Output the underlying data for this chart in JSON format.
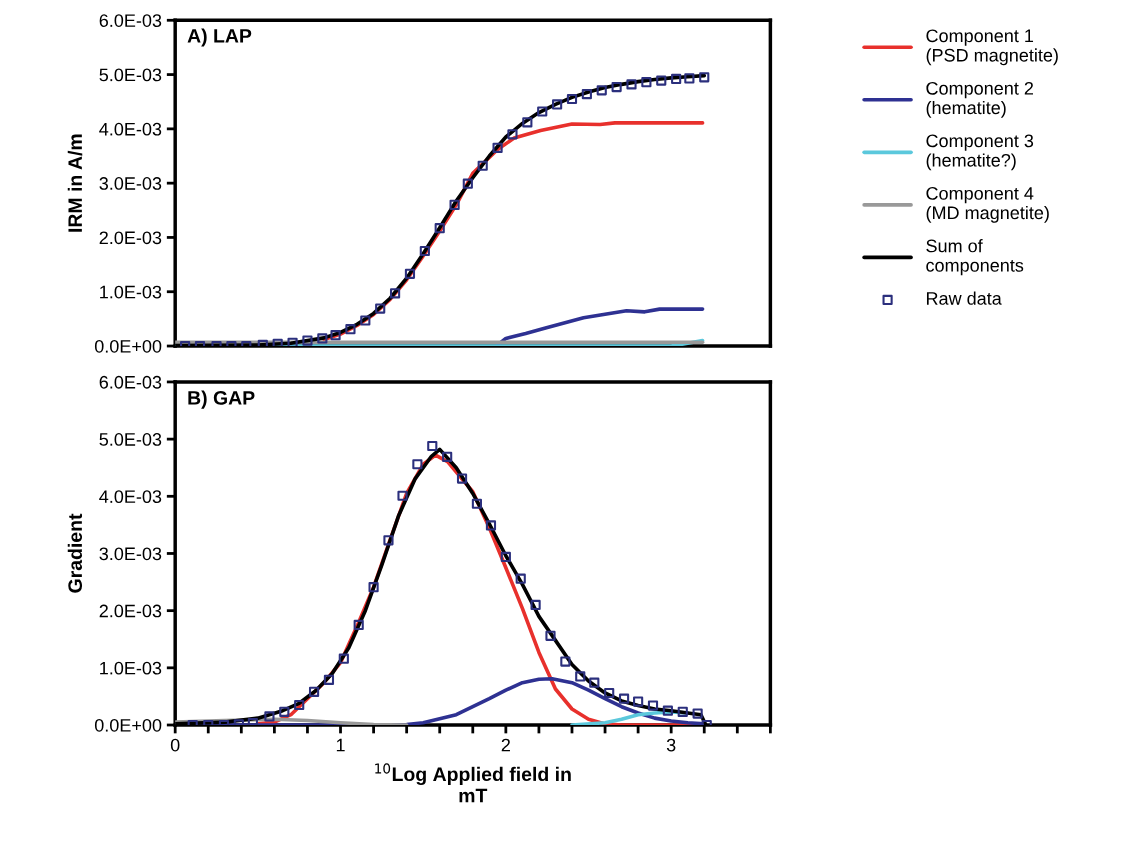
{
  "chart_data": [
    {
      "type": "line",
      "title": "A) LAP",
      "ylabel": "IRM in A/m",
      "xlim": [
        0,
        3.6
      ],
      "ylim": [
        0,
        0.006
      ],
      "yticks": [
        {
          "value": 0,
          "label": "0.0E+00"
        },
        {
          "value": 0.001,
          "label": "1.0E-03"
        },
        {
          "value": 0.002,
          "label": "2.0E-03"
        },
        {
          "value": 0.003,
          "label": "3.0E-03"
        },
        {
          "value": 0.004,
          "label": "4.0E-03"
        },
        {
          "value": 0.005,
          "label": "5.0E-03"
        },
        {
          "value": 0.006,
          "label": "6.0E-03"
        }
      ],
      "tick_labels": "y",
      "legend": "right",
      "series": [
        {
          "name": "Component 1\n(PSD magnetite)",
          "color": "#e8302c",
          "x": [
            0.9,
            1.0,
            1.1,
            1.2,
            1.3,
            1.4,
            1.5,
            1.6,
            1.7,
            1.8,
            1.95,
            2.05,
            2.21,
            2.4,
            2.57,
            2.66,
            3.19
          ],
          "values": [
            0.00012,
            0.00022,
            0.00038,
            0.00058,
            0.00086,
            0.00122,
            0.00166,
            0.00212,
            0.0026,
            0.00318,
            0.00362,
            0.00383,
            0.00397,
            0.00409,
            0.00408,
            0.00411,
            0.00411
          ]
        },
        {
          "name": "Component 2\n(hematite)",
          "color": "#2e3192",
          "x": [
            1.95,
            2.0,
            2.12,
            2.24,
            2.47,
            2.73,
            2.84,
            2.93,
            3.19
          ],
          "values": [
            2e-05,
            0.00014,
            0.00023,
            0.00033,
            0.00052,
            0.00065,
            0.00063,
            0.00068,
            0.00068
          ]
        },
        {
          "name": "Component 3\n(hematite?)",
          "color": "#5bc8dc",
          "x": [
            0,
            3.0,
            3.1,
            3.19
          ],
          "values": [
            0,
            0,
            5e-05,
            0.0001
          ]
        },
        {
          "name": "Component 4\n(MD magnetite)",
          "color": "#999999",
          "x": [
            0,
            3.19
          ],
          "values": [
            7e-05,
            7e-05
          ]
        },
        {
          "name": "Sum of\ncomponents",
          "color": "#000000",
          "x": [
            0,
            0.5,
            0.7,
            0.9,
            1.0,
            1.1,
            1.2,
            1.3,
            1.4,
            1.5,
            1.6,
            1.7,
            1.8,
            1.9,
            2.0,
            2.1,
            2.2,
            2.3,
            2.4,
            2.5,
            2.6,
            2.7,
            2.8,
            2.9,
            3.0,
            3.1,
            3.2
          ],
          "values": [
            1e-05,
            2e-05,
            5e-05,
            0.00015,
            0.00025,
            0.0004,
            0.0006,
            0.00088,
            0.00125,
            0.0017,
            0.00218,
            0.00267,
            0.0031,
            0.0035,
            0.00385,
            0.0041,
            0.0043,
            0.00445,
            0.00458,
            0.00468,
            0.00476,
            0.00482,
            0.00487,
            0.00491,
            0.00494,
            0.00496,
            0.00498
          ]
        },
        {
          "name": "Raw data",
          "type": "scatter",
          "marker": "square",
          "color": "#2b2f7d",
          "x": [
            0.06,
            0.15,
            0.25,
            0.34,
            0.43,
            0.53,
            0.62,
            0.71,
            0.8,
            0.89,
            0.97,
            1.06,
            1.15,
            1.24,
            1.33,
            1.42,
            1.51,
            1.6,
            1.69,
            1.77,
            1.86,
            1.95,
            2.04,
            2.13,
            2.22,
            2.31,
            2.4,
            2.49,
            2.58,
            2.67,
            2.76,
            2.85,
            2.94,
            3.03,
            3.11,
            3.2
          ],
          "values": [
            0,
            0,
            0,
            0,
            0,
            2e-05,
            4e-05,
            6e-05,
            0.0001,
            0.00014,
            0.0002,
            0.00031,
            0.00047,
            0.00069,
            0.00097,
            0.00133,
            0.00175,
            0.00217,
            0.0026,
            0.00299,
            0.00332,
            0.00365,
            0.0039,
            0.00412,
            0.00432,
            0.00445,
            0.00455,
            0.00464,
            0.00471,
            0.00477,
            0.00482,
            0.00486,
            0.00489,
            0.00492,
            0.00493,
            0.00495
          ]
        }
      ]
    },
    {
      "type": "line",
      "title": "B) GAP",
      "ylabel": "Gradient",
      "xlabel": "$^{10}$Log Applied field in\nmT",
      "xlim": [
        0,
        3.6
      ],
      "ylim": [
        0,
        0.006
      ],
      "xticks": [
        0,
        {
          "value": 0.2,
          "label": null
        },
        {
          "value": 0.4,
          "label": null
        },
        {
          "value": 0.6,
          "label": null
        },
        {
          "value": 0.8,
          "label": null
        },
        1,
        {
          "value": 1.2,
          "label": null
        },
        {
          "value": 1.4,
          "label": null
        },
        {
          "value": 1.6,
          "label": null
        },
        {
          "value": 1.8,
          "label": null
        },
        2,
        {
          "value": 2.2,
          "label": null
        },
        {
          "value": 2.4,
          "label": null
        },
        {
          "value": 2.6,
          "label": null
        },
        {
          "value": 2.8,
          "label": null
        },
        3,
        {
          "value": 3.2,
          "label": null
        },
        {
          "value": 3.4,
          "label": null
        },
        {
          "value": 3.6,
          "label": null
        }
      ],
      "yticks": [
        {
          "value": 0,
          "label": "0.0E+00"
        },
        {
          "value": 0.001,
          "label": "1.0E-03"
        },
        {
          "value": 0.002,
          "label": "2.0E-03"
        },
        {
          "value": 0.003,
          "label": "3.0E-03"
        },
        {
          "value": 0.004,
          "label": "4.0E-03"
        },
        {
          "value": 0.005,
          "label": "5.0E-03"
        },
        {
          "value": 0.006,
          "label": "6.0E-03"
        }
      ],
      "series": [
        {
          "color": "#e8302c",
          "x": [
            0.5,
            0.6,
            0.7,
            0.8,
            0.9,
            1.0,
            1.1,
            1.2,
            1.3,
            1.4,
            1.5,
            1.575,
            1.65,
            1.8,
            1.9,
            2.0,
            2.1,
            2.2,
            2.3,
            2.4,
            2.5,
            2.6,
            2.7,
            3.2
          ],
          "values": [
            2e-05,
            5e-05,
            0.00018,
            0.00046,
            0.00074,
            0.00109,
            0.00173,
            0.00241,
            0.00324,
            0.00405,
            0.00456,
            0.00472,
            0.0046,
            0.00408,
            0.00345,
            0.00275,
            0.00204,
            0.00127,
            0.00063,
            0.00028,
            0.0001,
            2e-05,
            0,
            0
          ]
        },
        {
          "color": "#2e3192",
          "x": [
            0,
            1.2,
            1.3,
            1.4,
            1.5,
            1.7,
            1.8,
            1.9,
            2.0,
            2.1,
            2.2,
            2.28,
            2.4,
            2.5,
            2.6,
            2.7,
            2.8,
            2.9,
            3.0,
            3.1,
            3.2
          ],
          "values": [
            0,
            0,
            0,
            1e-05,
            4e-05,
            0.00018,
            0.00032,
            0.00046,
            0.00061,
            0.00074,
            0.0008,
            0.00081,
            0.00074,
            0.00061,
            0.00046,
            0.00032,
            0.00021,
            0.00012,
            7e-05,
            4e-05,
            2e-05
          ]
        },
        {
          "color": "#5bc8dc",
          "x": [
            2.4,
            2.6,
            2.7,
            2.8,
            2.9,
            3.0,
            3.1
          ],
          "values": [
            0,
            4e-05,
            0.0001,
            0.00018,
            0.00021,
            0.00023,
            0.00021
          ]
        },
        {
          "color": "#999999",
          "x": [
            0,
            0.3,
            0.6,
            0.8,
            1.0,
            1.2,
            1.4
          ],
          "values": [
            5e-05,
            8e-05,
            0.0001,
            8e-05,
            4e-05,
            1e-05,
            0
          ]
        },
        {
          "color": "#000000",
          "x": [
            0,
            0.3,
            0.5,
            0.65,
            0.75,
            0.85,
            0.95,
            1.05,
            1.15,
            1.25,
            1.35,
            1.45,
            1.55,
            1.6,
            1.7,
            1.8,
            1.9,
            2.0,
            2.1,
            2.2,
            2.3,
            2.4,
            2.5,
            2.6,
            2.7,
            2.8,
            2.9,
            3.0,
            3.1,
            3.18,
            3.21
          ],
          "values": [
            2e-05,
            5e-05,
            0.00012,
            0.00025,
            0.00038,
            0.0006,
            0.0009,
            0.00135,
            0.002,
            0.0028,
            0.00365,
            0.0043,
            0.0047,
            0.00482,
            0.0045,
            0.00405,
            0.00352,
            0.00296,
            0.00246,
            0.0019,
            0.00148,
            0.00106,
            0.00077,
            0.00056,
            0.00042,
            0.00034,
            0.00028,
            0.00025,
            0.00021,
            0.00018,
            0
          ]
        },
        {
          "type": "scatter",
          "marker": "square",
          "color": "#2b2f7d",
          "x": [
            0.106,
            0.2,
            0.295,
            0.385,
            0.47,
            0.57,
            0.66,
            0.75,
            0.84,
            0.93,
            1.02,
            1.11,
            1.2,
            1.29,
            1.375,
            1.465,
            1.555,
            1.645,
            1.735,
            1.825,
            1.91,
            2.0,
            2.09,
            2.18,
            2.27,
            2.36,
            2.45,
            2.535,
            2.625,
            2.715,
            2.8,
            2.89,
            2.98,
            3.07,
            3.16,
            3.215
          ],
          "values": [
            0,
            0,
            0,
            1e-05,
            3.5e-05,
            0.00015,
            0.00023,
            0.00035,
            0.00058,
            0.00079,
            0.00116,
            0.00175,
            0.00241,
            0.00323,
            0.00401,
            0.00456,
            0.00488,
            0.00469,
            0.00431,
            0.00387,
            0.00349,
            0.00294,
            0.00256,
            0.0021,
            0.00156,
            0.00111,
            0.00085,
            0.00074,
            0.00056,
            0.00046,
            0.00041,
            0.00034,
            0.00025,
            0.00023,
            0.0002,
            0
          ]
        }
      ]
    }
  ]
}
